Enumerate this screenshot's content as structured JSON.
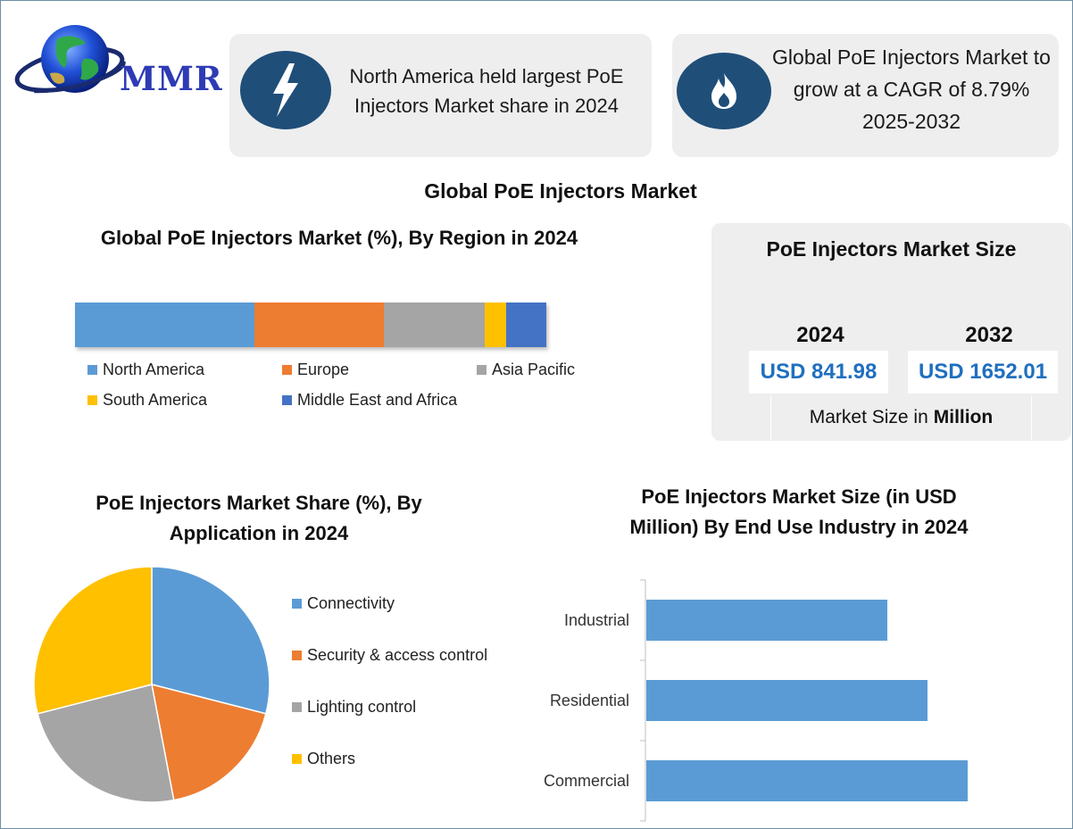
{
  "logo": {
    "text": "MMR"
  },
  "info_cards": [
    {
      "icon": "lightning-icon",
      "text": "North America held largest PoE Injectors Market share in 2024"
    },
    {
      "icon": "flame-icon",
      "text": "Global PoE Injectors Market to grow at a CAGR of 8.79% 2025-2032"
    }
  ],
  "main_title": "Global PoE Injectors Market",
  "market_size": {
    "title": "PoE Injectors Market Size",
    "year_a": "2024",
    "year_b": "2032",
    "value_a": "USD 841.98",
    "value_b": "USD 1652.01",
    "note_prefix": "Market Size in",
    "note_bold": "Million"
  },
  "colors": {
    "blue": "#5b9bd5",
    "orange": "#ed7d31",
    "gray": "#a5a5a5",
    "yellow": "#ffc000",
    "dark_blue": "#4472c4",
    "navy": "#1f4e79",
    "value_blue": "#1f6fbf"
  },
  "chart_data": [
    {
      "type": "bar",
      "orientation": "horizontal-stacked",
      "title": "Global PoE Injectors Market (%), By Region in 2024",
      "series": [
        {
          "name": "North America",
          "values": [
            38
          ],
          "color": "#5b9bd5"
        },
        {
          "name": "Europe",
          "values": [
            27.5
          ],
          "color": "#ed7d31"
        },
        {
          "name": "Asia Pacific",
          "values": [
            21.5
          ],
          "color": "#a5a5a5"
        },
        {
          "name": "South America",
          "values": [
            4.5
          ],
          "color": "#ffc000"
        },
        {
          "name": "Middle East and Africa",
          "values": [
            8.5
          ],
          "color": "#4472c4"
        }
      ],
      "legend_position": "bottom"
    },
    {
      "type": "pie",
      "title_line1": "PoE Injectors Market  Share (%), By",
      "title_line2": "Application in 2024",
      "categories": [
        "Connectivity",
        "Security & access control",
        "Lighting control",
        "Others"
      ],
      "values": [
        29,
        18,
        24,
        29
      ],
      "colors": [
        "#5b9bd5",
        "#ed7d31",
        "#a5a5a5",
        "#ffc000"
      ],
      "legend_position": "right"
    },
    {
      "type": "bar",
      "orientation": "horizontal",
      "title_line1": "PoE Injectors Market  Size (in USD",
      "title_line2": "Million) By End Use Industry in 2024",
      "categories": [
        "Industrial",
        "Residential",
        "Commercial"
      ],
      "values": [
        75,
        87.5,
        100
      ],
      "xlim": [
        0,
        100
      ],
      "color": "#5b9bd5",
      "grid": false
    }
  ]
}
